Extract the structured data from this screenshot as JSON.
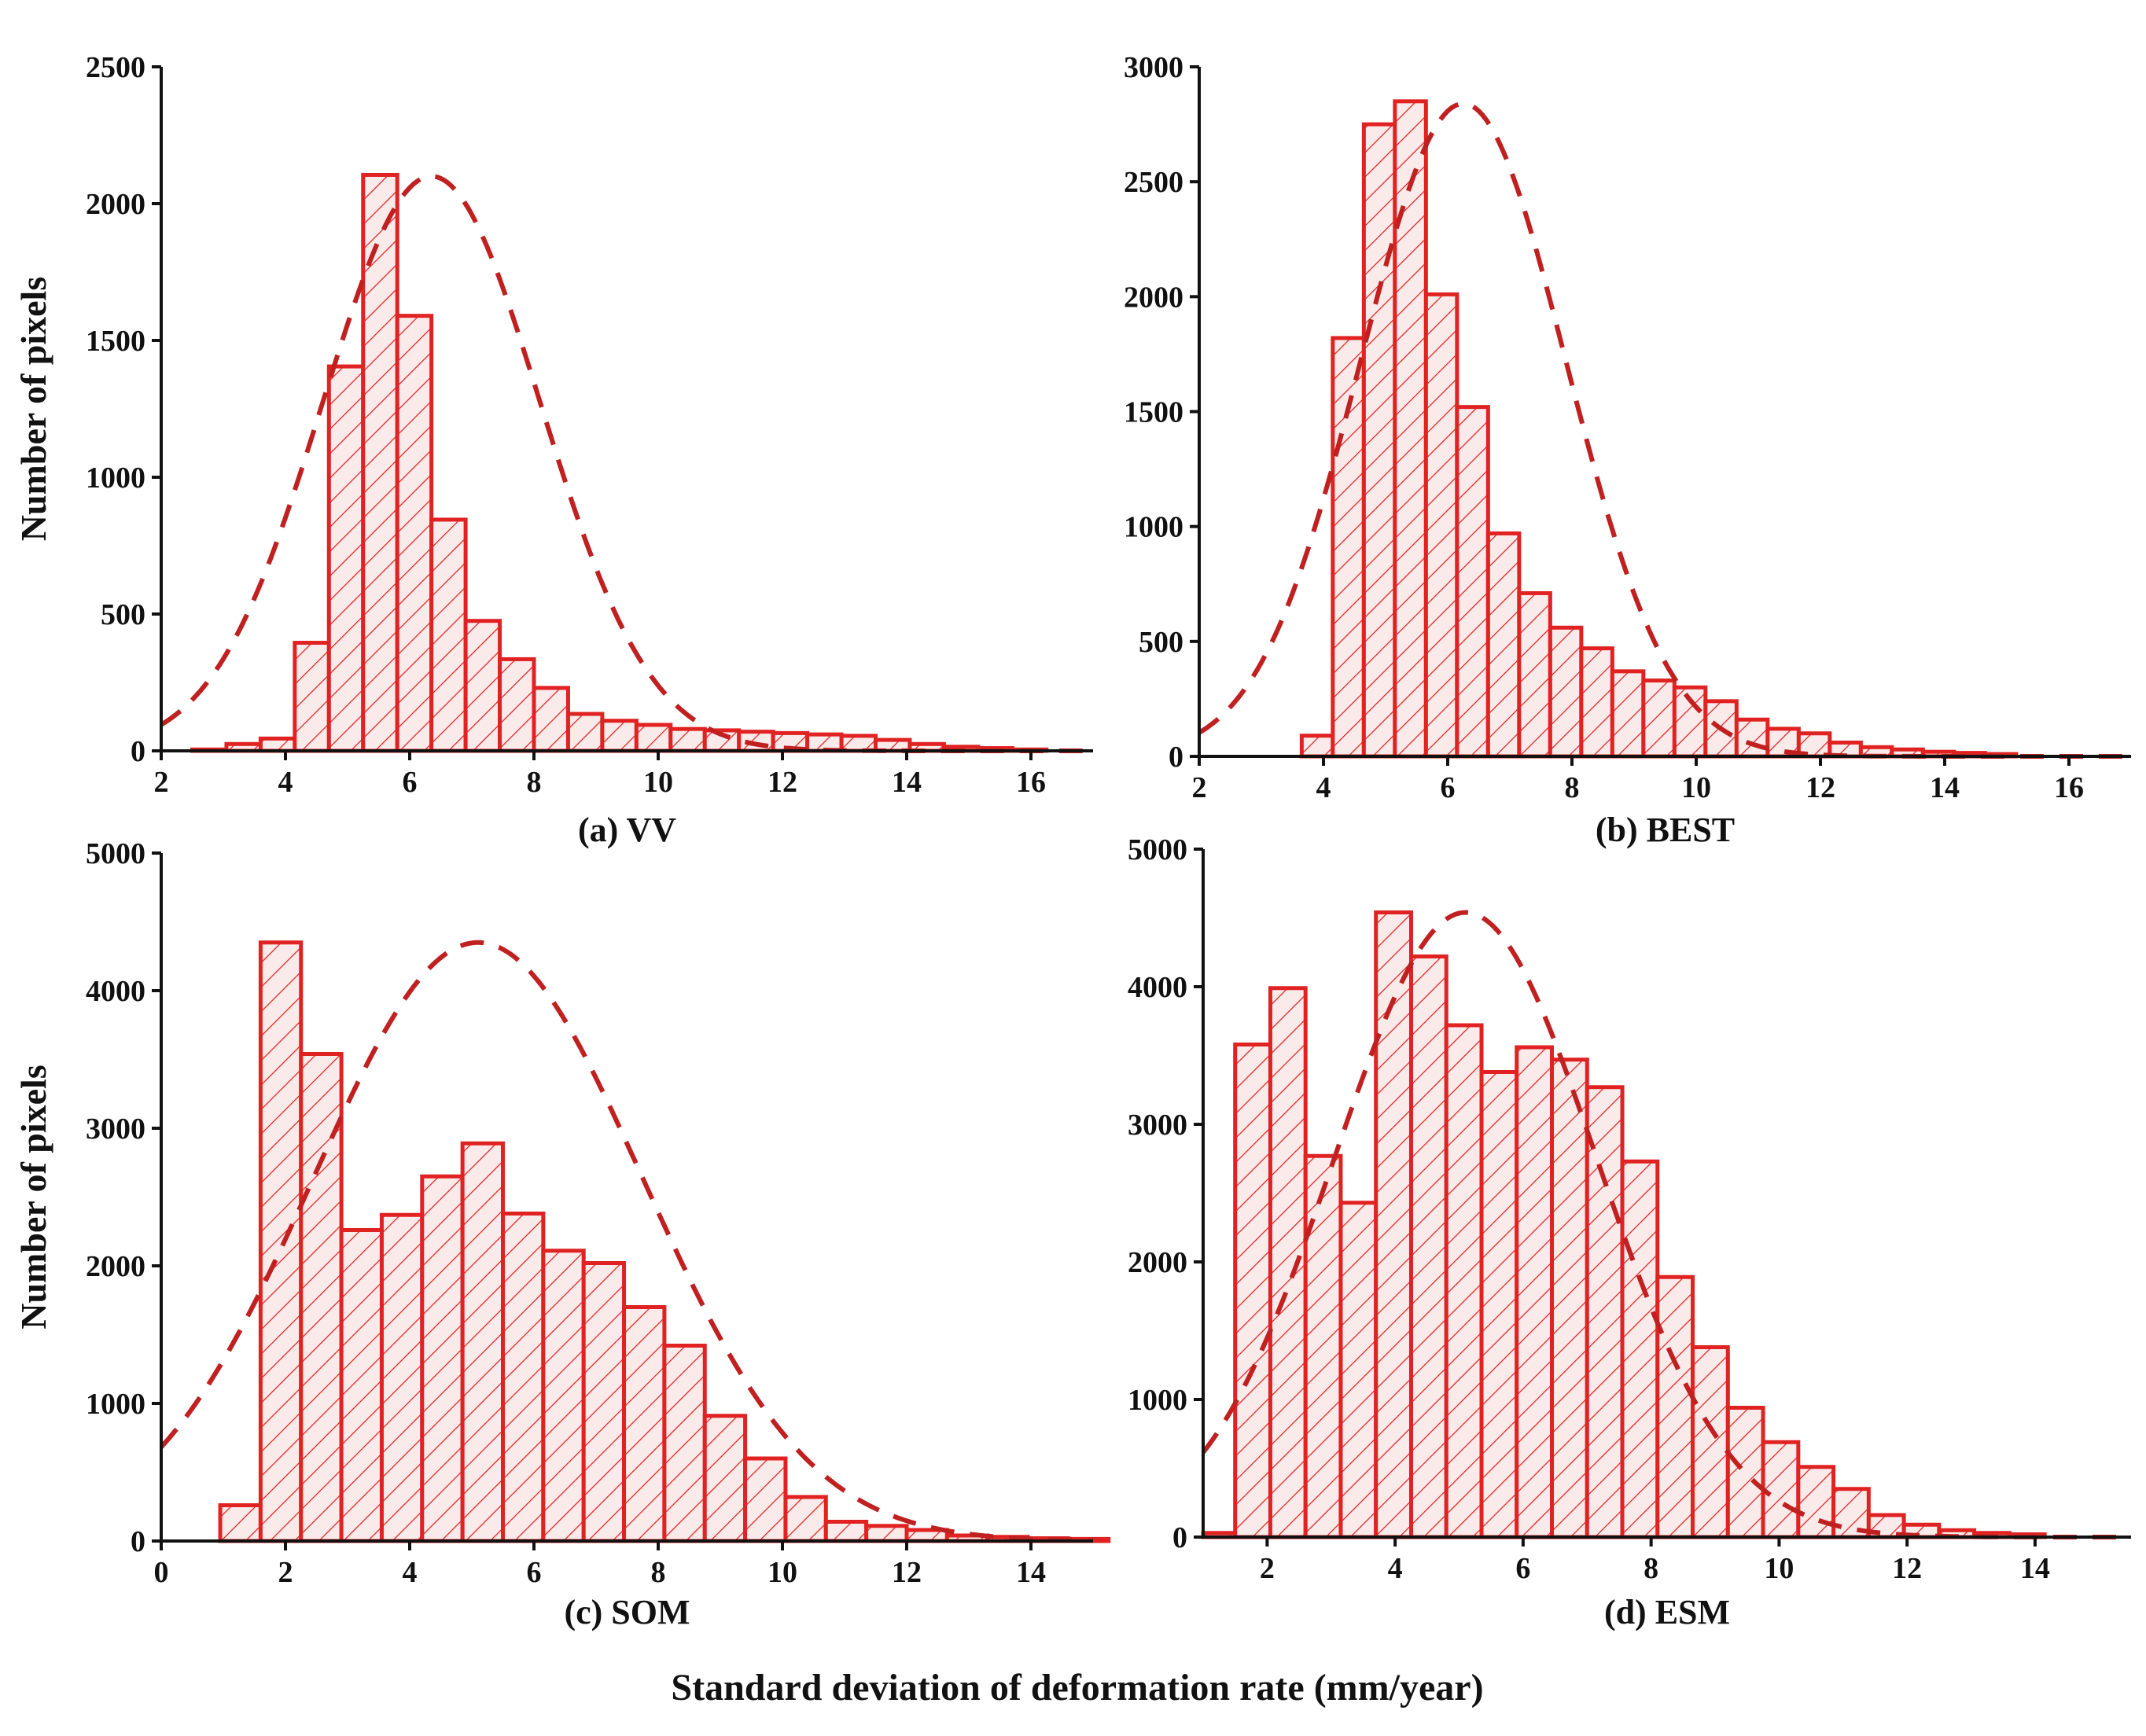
{
  "colors": {
    "bar_stroke": "#e02222",
    "bar_hatch": "#e02222",
    "bar_fill": "#fbeaea",
    "fit_curve": "#c02020",
    "axis": "#111111"
  },
  "figure": {
    "xlabel": "Standard deviation of deformation rate (mm/year)",
    "ylabel": "Number of pixels"
  },
  "chart_data": [
    {
      "type": "bar",
      "title": "(a) VV",
      "ylabel": "Number of pixels",
      "xlim": [
        2,
        17
      ],
      "ylim": [
        0,
        2500
      ],
      "xticks": [
        2,
        4,
        6,
        8,
        10,
        12,
        14,
        16
      ],
      "yticks": [
        0,
        500,
        1000,
        1500,
        2000,
        2500
      ],
      "bin_width": 0.55,
      "bins": [
        {
          "x0": 2.5,
          "count": 5
        },
        {
          "x0": 3.05,
          "count": 25
        },
        {
          "x0": 3.6,
          "count": 45
        },
        {
          "x0": 4.15,
          "count": 395
        },
        {
          "x0": 4.7,
          "count": 1405
        },
        {
          "x0": 5.25,
          "count": 2105
        },
        {
          "x0": 5.8,
          "count": 1590
        },
        {
          "x0": 6.35,
          "count": 845
        },
        {
          "x0": 6.9,
          "count": 475
        },
        {
          "x0": 7.45,
          "count": 335
        },
        {
          "x0": 8.0,
          "count": 230
        },
        {
          "x0": 8.55,
          "count": 135
        },
        {
          "x0": 9.1,
          "count": 110
        },
        {
          "x0": 9.65,
          "count": 95
        },
        {
          "x0": 10.2,
          "count": 80
        },
        {
          "x0": 10.75,
          "count": 75
        },
        {
          "x0": 11.3,
          "count": 70
        },
        {
          "x0": 11.85,
          "count": 65
        },
        {
          "x0": 12.4,
          "count": 60
        },
        {
          "x0": 12.95,
          "count": 55
        },
        {
          "x0": 13.5,
          "count": 40
        },
        {
          "x0": 14.05,
          "count": 25
        },
        {
          "x0": 14.6,
          "count": 15
        },
        {
          "x0": 15.15,
          "count": 10
        },
        {
          "x0": 15.7,
          "count": 5
        }
      ],
      "fit": {
        "type": "normal",
        "mean": 6.35,
        "sd": 1.75,
        "peak": 2100
      }
    },
    {
      "type": "bar",
      "title": "(b) BEST",
      "ylabel": "",
      "xlim": [
        2,
        17
      ],
      "ylim": [
        0,
        3000
      ],
      "xticks": [
        2,
        4,
        6,
        8,
        10,
        12,
        14,
        16
      ],
      "yticks": [
        0,
        500,
        1000,
        1500,
        2000,
        2500,
        3000
      ],
      "bin_width": 0.5,
      "bins": [
        {
          "x0": 3.65,
          "count": 90
        },
        {
          "x0": 4.15,
          "count": 1820
        },
        {
          "x0": 4.65,
          "count": 2750
        },
        {
          "x0": 5.15,
          "count": 2850
        },
        {
          "x0": 5.65,
          "count": 2010
        },
        {
          "x0": 6.15,
          "count": 1520
        },
        {
          "x0": 6.65,
          "count": 970
        },
        {
          "x0": 7.15,
          "count": 710
        },
        {
          "x0": 7.65,
          "count": 560
        },
        {
          "x0": 8.15,
          "count": 470
        },
        {
          "x0": 8.65,
          "count": 370
        },
        {
          "x0": 9.15,
          "count": 330
        },
        {
          "x0": 9.65,
          "count": 300
        },
        {
          "x0": 10.15,
          "count": 240
        },
        {
          "x0": 10.65,
          "count": 160
        },
        {
          "x0": 11.15,
          "count": 120
        },
        {
          "x0": 11.65,
          "count": 100
        },
        {
          "x0": 12.15,
          "count": 60
        },
        {
          "x0": 12.65,
          "count": 40
        },
        {
          "x0": 13.15,
          "count": 30
        },
        {
          "x0": 13.65,
          "count": 20
        },
        {
          "x0": 14.15,
          "count": 15
        },
        {
          "x0": 14.65,
          "count": 10
        }
      ],
      "fit": {
        "type": "normal",
        "mean": 6.25,
        "sd": 1.65,
        "peak": 2840
      }
    },
    {
      "type": "bar",
      "title": "(c) SOM",
      "ylabel": "Number of pixels",
      "xlim": [
        0,
        15
      ],
      "ylim": [
        0,
        5000
      ],
      "xticks": [
        0,
        2,
        4,
        6,
        8,
        10,
        12,
        14
      ],
      "yticks": [
        0,
        1000,
        2000,
        3000,
        4000,
        5000
      ],
      "bin_width": 0.65,
      "bins": [
        {
          "x0": 0.95,
          "count": 260
        },
        {
          "x0": 1.6,
          "count": 4350
        },
        {
          "x0": 2.25,
          "count": 3540
        },
        {
          "x0": 2.9,
          "count": 2260
        },
        {
          "x0": 3.55,
          "count": 2370
        },
        {
          "x0": 4.2,
          "count": 2650
        },
        {
          "x0": 4.85,
          "count": 2890
        },
        {
          "x0": 5.5,
          "count": 2380
        },
        {
          "x0": 6.15,
          "count": 2110
        },
        {
          "x0": 6.8,
          "count": 2020
        },
        {
          "x0": 7.45,
          "count": 1700
        },
        {
          "x0": 8.1,
          "count": 1420
        },
        {
          "x0": 8.75,
          "count": 910
        },
        {
          "x0": 9.4,
          "count": 600
        },
        {
          "x0": 10.05,
          "count": 320
        },
        {
          "x0": 10.7,
          "count": 140
        },
        {
          "x0": 11.35,
          "count": 110
        },
        {
          "x0": 12.0,
          "count": 80
        },
        {
          "x0": 12.65,
          "count": 40
        },
        {
          "x0": 13.3,
          "count": 30
        },
        {
          "x0": 13.95,
          "count": 20
        },
        {
          "x0": 14.6,
          "count": 15
        }
      ],
      "fit": {
        "type": "normal",
        "mean": 5.1,
        "sd": 2.65,
        "peak": 4350
      }
    },
    {
      "type": "bar",
      "title": "(d) ESM",
      "ylabel": "",
      "xlim": [
        1,
        15.5
      ],
      "ylim": [
        0,
        5000
      ],
      "xticks": [
        2,
        4,
        6,
        8,
        10,
        12,
        14
      ],
      "yticks": [
        0,
        1000,
        2000,
        3000,
        4000,
        5000
      ],
      "bin_width": 0.55,
      "bins": [
        {
          "x0": 1.0,
          "count": 30
        },
        {
          "x0": 1.5,
          "count": 3580
        },
        {
          "x0": 2.05,
          "count": 3990
        },
        {
          "x0": 2.6,
          "count": 2770
        },
        {
          "x0": 3.15,
          "count": 2430
        },
        {
          "x0": 3.7,
          "count": 4540
        },
        {
          "x0": 4.25,
          "count": 4220
        },
        {
          "x0": 4.8,
          "count": 3720
        },
        {
          "x0": 5.35,
          "count": 3380
        },
        {
          "x0": 5.9,
          "count": 3560
        },
        {
          "x0": 6.45,
          "count": 3470
        },
        {
          "x0": 7.0,
          "count": 3270
        },
        {
          "x0": 7.55,
          "count": 2730
        },
        {
          "x0": 8.1,
          "count": 1890
        },
        {
          "x0": 8.65,
          "count": 1380
        },
        {
          "x0": 9.2,
          "count": 940
        },
        {
          "x0": 9.75,
          "count": 690
        },
        {
          "x0": 10.3,
          "count": 510
        },
        {
          "x0": 10.85,
          "count": 350
        },
        {
          "x0": 11.4,
          "count": 160
        },
        {
          "x0": 11.95,
          "count": 90
        },
        {
          "x0": 12.5,
          "count": 50
        },
        {
          "x0": 13.05,
          "count": 30
        },
        {
          "x0": 13.6,
          "count": 20
        }
      ],
      "fit": {
        "type": "normal",
        "mean": 5.1,
        "sd": 2.05,
        "peak": 4540
      }
    }
  ]
}
